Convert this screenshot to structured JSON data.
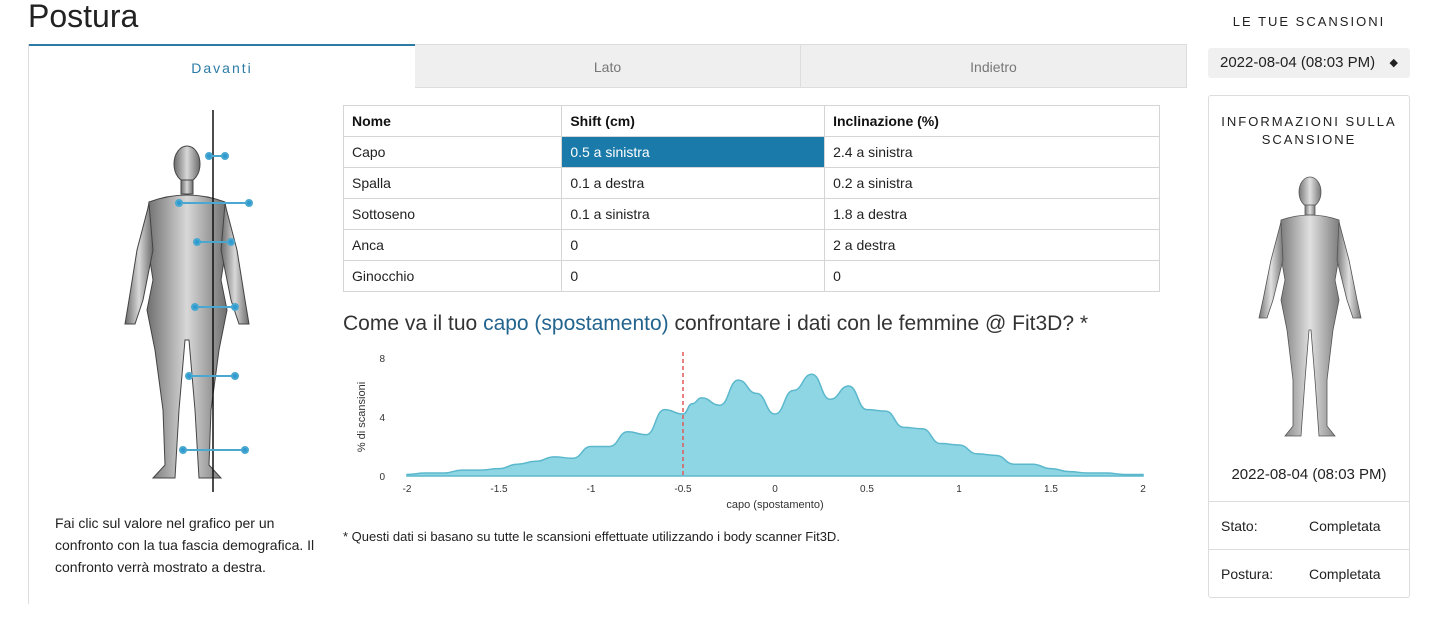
{
  "page_title": "Postura",
  "tabs": [
    {
      "label": "Davanti",
      "active": true
    },
    {
      "label": "Lato",
      "active": false
    },
    {
      "label": "Indietro",
      "active": false
    }
  ],
  "table": {
    "headers": [
      "Nome",
      "Shift (cm)",
      "Inclinazione (%)"
    ],
    "rows": [
      [
        "Capo",
        "0.5 a sinistra",
        "2.4 a sinistra"
      ],
      [
        "Spalla",
        "0.1 a destra",
        "0.2 a sinistra"
      ],
      [
        "Sottoseno",
        "0.1 a sinistra",
        "1.8 a destra"
      ],
      [
        "Anca",
        "0",
        "2 a destra"
      ],
      [
        "Ginocchio",
        "0",
        "0"
      ]
    ],
    "selected": {
      "row": 0,
      "col": 1
    }
  },
  "comparison": {
    "title_before": "Come va il tuo ",
    "title_highlight": "capo (spostamento)",
    "title_after": " confrontare i dati con le femmine @ Fit3D? *"
  },
  "chart_data": {
    "type": "area",
    "xlabel": "capo (spostamento)",
    "ylabel": "% di scansioni",
    "xlim": [
      -2,
      2
    ],
    "ylim": [
      0,
      8
    ],
    "xticks": [
      "-2",
      "-1.5",
      "-1",
      "-0.5",
      "0",
      "0.5",
      "1",
      "1.5",
      "2"
    ],
    "yticks": [
      "0",
      "4",
      "8"
    ],
    "marker_x": -0.5,
    "x": [
      -2,
      -1.9,
      -1.8,
      -1.7,
      -1.6,
      -1.5,
      -1.4,
      -1.3,
      -1.2,
      -1.1,
      -1.0,
      -0.9,
      -0.8,
      -0.7,
      -0.6,
      -0.5,
      -0.45,
      -0.4,
      -0.3,
      -0.2,
      -0.1,
      0,
      0.1,
      0.2,
      0.3,
      0.4,
      0.5,
      0.6,
      0.7,
      0.8,
      0.9,
      1.0,
      1.1,
      1.2,
      1.3,
      1.4,
      1.5,
      1.6,
      1.7,
      1.8,
      1.9,
      2.0
    ],
    "y": [
      0.1,
      0.2,
      0.2,
      0.4,
      0.4,
      0.5,
      0.8,
      1.0,
      1.3,
      1.2,
      2.0,
      2.0,
      3.0,
      2.8,
      4.5,
      4.2,
      4.9,
      5.3,
      4.8,
      6.5,
      5.6,
      4.2,
      5.8,
      6.9,
      5.2,
      6.1,
      4.5,
      4.4,
      3.3,
      3.2,
      2.2,
      2.1,
      1.5,
      1.4,
      0.8,
      0.8,
      0.5,
      0.3,
      0.2,
      0.2,
      0.1,
      0.1
    ],
    "colors": {
      "fill": "#8fd6e4",
      "stroke": "#5bb8cc",
      "marker": "#e05a5a"
    }
  },
  "instructions": "Fai clic sul valore nel grafico per un confronto con la tua fascia demografica. Il confronto verrà mostrato a destra.",
  "footnote": "* Questi dati si basano su tutte le scansioni effettuate utilizzando i body scanner Fit3D.",
  "sidebar": {
    "heading": "LE TUE SCANSIONI",
    "scan_select_value": "2022-08-04 (08:03 PM)",
    "select_arrows": "◆",
    "card_title": "INFORMAZIONI SULLA SCANSIONE",
    "scan_date": "2022-08-04 (08:03 PM)",
    "stato_label": "Stato:",
    "stato_value": "Completata",
    "postura_label": "Postura:",
    "postura_value": "Completata"
  },
  "accent": "#1a7aaa"
}
